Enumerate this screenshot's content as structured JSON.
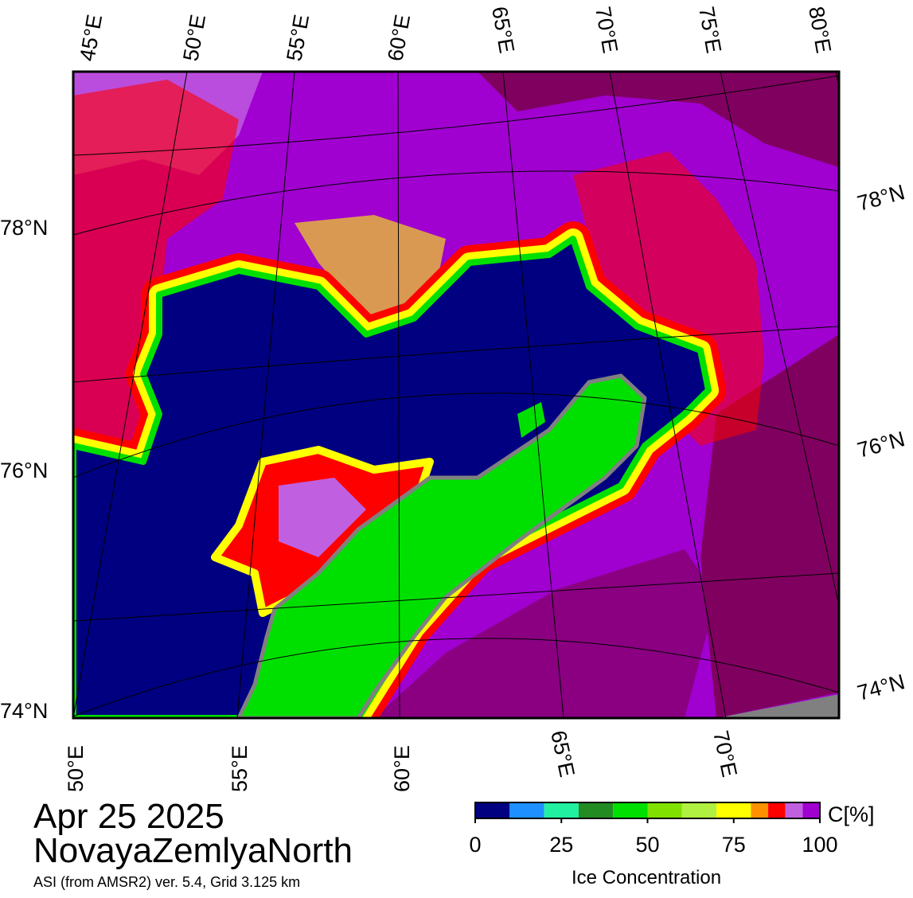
{
  "map": {
    "top_labels": [
      "45°E",
      "50°E",
      "55°E",
      "60°E",
      "65°E",
      "70°E",
      "75°E",
      "80°E"
    ],
    "left_labels": [
      "78°N",
      "76°N",
      "74°N"
    ],
    "right_labels": [
      "78°N",
      "76°N",
      "74°N"
    ],
    "bottom_labels": [
      "50°E",
      "55°E",
      "60°E",
      "65°E",
      "70°E"
    ]
  },
  "info": {
    "date": "Apr 25 2025",
    "region": "NovayaZemlyaNorth",
    "subtitle": "ASI (from AMSR2) ver. 5.4,  Grid 3.125 km"
  },
  "colorbar": {
    "unit_label": "C[%]",
    "label": "Ice Concentration",
    "range": [
      0,
      100
    ],
    "ticks": [
      0,
      25,
      50,
      75,
      100
    ],
    "bounds": [
      0,
      10,
      20,
      30,
      40,
      50,
      60,
      70,
      80,
      85,
      90,
      95,
      100
    ],
    "colors": [
      "#000080",
      "#1e90ff",
      "#20f0a0",
      "#228b22",
      "#00e000",
      "#80e000",
      "#b0f040",
      "#ffff00",
      "#ff9000",
      "#ff0000",
      "#c060e0",
      "#a000d0"
    ]
  }
}
